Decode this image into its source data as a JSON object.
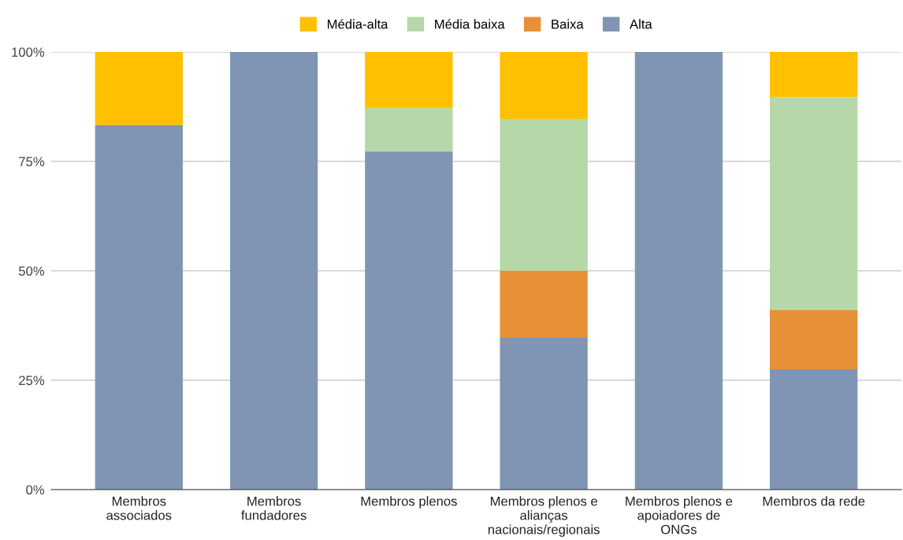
{
  "chart_data": {
    "type": "bar",
    "stacked": true,
    "categories": [
      "Membros\nassociados",
      "Membros\nfundadores",
      "Membros plenos",
      "Membros plenos e\nalianças\nnacionais/regionais",
      "Membros plenos e\napoiadores de\nONGs",
      "Membros da rede"
    ],
    "series": [
      {
        "name": "Alta",
        "color": "#8095b4",
        "values": [
          83.3,
          100,
          77.3,
          34.7,
          100,
          27.5
        ]
      },
      {
        "name": "Baixa",
        "color": "#e69138",
        "values": [
          0,
          0,
          0,
          15.3,
          0,
          13.5
        ]
      },
      {
        "name": "Média baixa",
        "color": "#b6d7a8",
        "values": [
          0,
          0,
          9.9,
          34.7,
          0,
          48.7
        ]
      },
      {
        "name": "Média-alta",
        "color": "#ffc000",
        "values": [
          16.7,
          0,
          12.8,
          15.3,
          0,
          10.3
        ]
      }
    ],
    "ylim": [
      0,
      100
    ],
    "yticks": [
      {
        "value": 0,
        "label": "0%"
      },
      {
        "value": 25,
        "label": "25%"
      },
      {
        "value": 50,
        "label": "50%"
      },
      {
        "value": 75,
        "label": "75%"
      },
      {
        "value": 100,
        "label": "100%"
      }
    ],
    "grid": "y",
    "legend": "top"
  }
}
